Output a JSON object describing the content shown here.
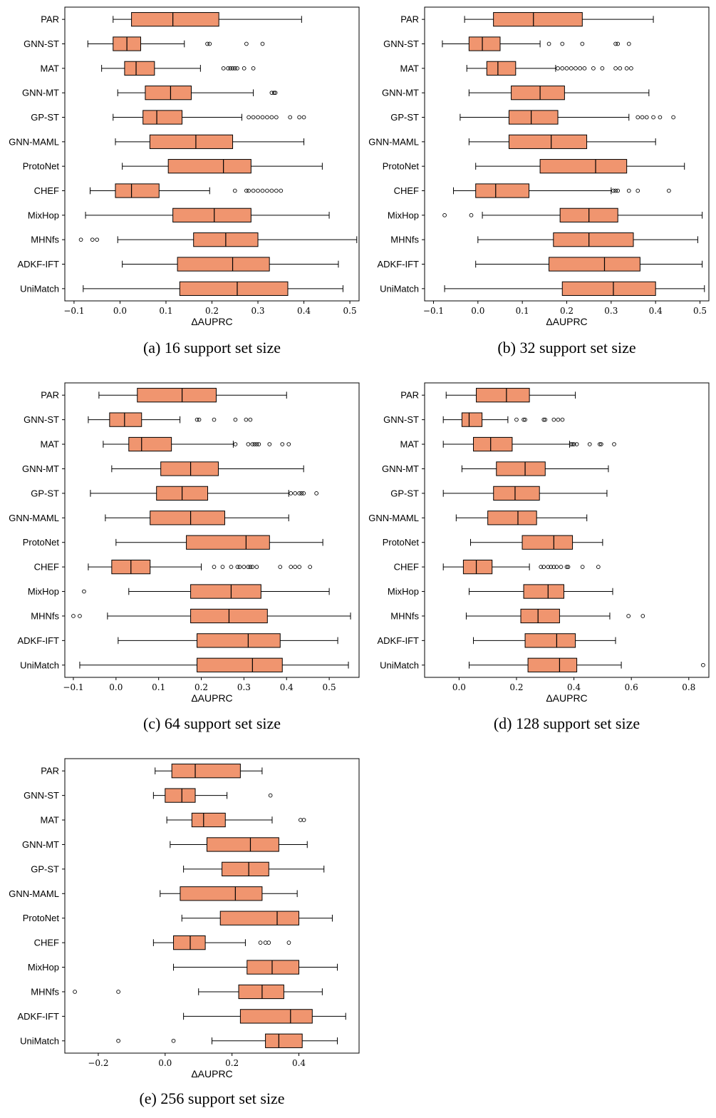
{
  "figure": {
    "box_color": "#f0956f",
    "edge_color": "#000000"
  },
  "chart_data": [
    {
      "type": "boxplot",
      "caption": "(a) 16 support set size",
      "xlabel": "ΔAUPRC",
      "xlim": [
        -0.12,
        0.52
      ],
      "xticks": [
        -0.1,
        0.0,
        0.1,
        0.2,
        0.3,
        0.4,
        0.5
      ],
      "xtick_labels": [
        "−0.1",
        "0.0",
        "0.1",
        "0.2",
        "0.3",
        "0.4",
        "0.5"
      ],
      "categories": [
        "PAR",
        "GNN-ST",
        "MAT",
        "GNN-MT",
        "GP-ST",
        "GNN-MAML",
        "ProtoNet",
        "CHEF",
        "MixHop",
        "MHNfs",
        "ADKF-IFT",
        "UniMatch"
      ],
      "boxes": [
        {
          "whislo": -0.015,
          "q1": 0.025,
          "med": 0.115,
          "q3": 0.215,
          "whishi": 0.395,
          "fliers": []
        },
        {
          "whislo": -0.07,
          "q1": -0.015,
          "med": 0.015,
          "q3": 0.045,
          "whishi": 0.14,
          "fliers": [
            0.19,
            0.195,
            0.275,
            0.31
          ]
        },
        {
          "whislo": -0.04,
          "q1": 0.01,
          "med": 0.035,
          "q3": 0.075,
          "whishi": 0.175,
          "fliers": [
            0.225,
            0.235,
            0.24,
            0.245,
            0.25,
            0.255,
            0.27,
            0.29
          ]
        },
        {
          "whislo": -0.005,
          "q1": 0.055,
          "med": 0.11,
          "q3": 0.155,
          "whishi": 0.29,
          "fliers": [
            0.33,
            0.335,
            0.338
          ]
        },
        {
          "whislo": -0.015,
          "q1": 0.05,
          "med": 0.08,
          "q3": 0.135,
          "whishi": 0.265,
          "fliers": [
            0.28,
            0.29,
            0.3,
            0.31,
            0.32,
            0.33,
            0.34,
            0.37,
            0.39,
            0.4
          ]
        },
        {
          "whislo": -0.01,
          "q1": 0.065,
          "med": 0.165,
          "q3": 0.245,
          "whishi": 0.4,
          "fliers": []
        },
        {
          "whislo": 0.005,
          "q1": 0.105,
          "med": 0.225,
          "q3": 0.285,
          "whishi": 0.44,
          "fliers": []
        },
        {
          "whislo": -0.065,
          "q1": -0.01,
          "med": 0.025,
          "q3": 0.085,
          "whishi": 0.195,
          "fliers": [
            0.25,
            0.275,
            0.28,
            0.29,
            0.3,
            0.31,
            0.32,
            0.33,
            0.34,
            0.35
          ]
        },
        {
          "whislo": -0.075,
          "q1": 0.115,
          "med": 0.205,
          "q3": 0.285,
          "whishi": 0.455,
          "fliers": []
        },
        {
          "whislo": -0.005,
          "q1": 0.16,
          "med": 0.23,
          "q3": 0.3,
          "whishi": 0.515,
          "fliers": [
            -0.085,
            -0.06,
            -0.05
          ]
        },
        {
          "whislo": 0.005,
          "q1": 0.125,
          "med": 0.245,
          "q3": 0.325,
          "whishi": 0.475,
          "fliers": []
        },
        {
          "whislo": -0.08,
          "q1": 0.13,
          "med": 0.255,
          "q3": 0.365,
          "whishi": 0.485,
          "fliers": []
        }
      ]
    },
    {
      "type": "boxplot",
      "caption": "(b) 32 support set size",
      "xlabel": "ΔAUPRC",
      "xlim": [
        -0.12,
        0.52
      ],
      "xticks": [
        -0.1,
        0.0,
        0.1,
        0.2,
        0.3,
        0.4,
        0.5
      ],
      "xtick_labels": [
        "−0.1",
        "0.0",
        "0.1",
        "0.2",
        "0.3",
        "0.4",
        "0.5"
      ],
      "categories": [
        "PAR",
        "GNN-ST",
        "MAT",
        "GNN-MT",
        "GP-ST",
        "GNN-MAML",
        "ProtoNet",
        "CHEF",
        "MixHop",
        "MHNfs",
        "ADKF-IFT",
        "UniMatch"
      ],
      "boxes": [
        {
          "whislo": -0.03,
          "q1": 0.035,
          "med": 0.125,
          "q3": 0.235,
          "whishi": 0.395,
          "fliers": []
        },
        {
          "whislo": -0.08,
          "q1": -0.02,
          "med": 0.01,
          "q3": 0.05,
          "whishi": 0.14,
          "fliers": [
            0.16,
            0.19,
            0.235,
            0.31,
            0.315,
            0.34
          ]
        },
        {
          "whislo": -0.025,
          "q1": 0.02,
          "med": 0.045,
          "q3": 0.085,
          "whishi": 0.175,
          "fliers": [
            0.18,
            0.19,
            0.2,
            0.21,
            0.22,
            0.23,
            0.24,
            0.26,
            0.28,
            0.31,
            0.32,
            0.335,
            0.345
          ]
        },
        {
          "whislo": -0.02,
          "q1": 0.075,
          "med": 0.14,
          "q3": 0.195,
          "whishi": 0.385,
          "fliers": []
        },
        {
          "whislo": -0.04,
          "q1": 0.07,
          "med": 0.12,
          "q3": 0.18,
          "whishi": 0.34,
          "fliers": [
            0.36,
            0.37,
            0.38,
            0.395,
            0.41,
            0.44
          ]
        },
        {
          "whislo": -0.02,
          "q1": 0.07,
          "med": 0.165,
          "q3": 0.245,
          "whishi": 0.4,
          "fliers": []
        },
        {
          "whislo": -0.005,
          "q1": 0.14,
          "med": 0.265,
          "q3": 0.335,
          "whishi": 0.465,
          "fliers": []
        },
        {
          "whislo": -0.055,
          "q1": -0.005,
          "med": 0.04,
          "q3": 0.115,
          "whishi": 0.3,
          "fliers": [
            0.305,
            0.31,
            0.315,
            0.34,
            0.36,
            0.43
          ]
        },
        {
          "whislo": 0.01,
          "q1": 0.185,
          "med": 0.25,
          "q3": 0.315,
          "whishi": 0.505,
          "fliers": [
            -0.075,
            -0.015
          ]
        },
        {
          "whislo": 0.0,
          "q1": 0.17,
          "med": 0.25,
          "q3": 0.35,
          "whishi": 0.495,
          "fliers": []
        },
        {
          "whislo": -0.005,
          "q1": 0.16,
          "med": 0.285,
          "q3": 0.365,
          "whishi": 0.505,
          "fliers": []
        },
        {
          "whislo": -0.075,
          "q1": 0.19,
          "med": 0.305,
          "q3": 0.4,
          "whishi": 0.51,
          "fliers": []
        }
      ]
    },
    {
      "type": "boxplot",
      "caption": "(c) 64 support set size",
      "xlabel": "ΔAUPRC",
      "xlim": [
        -0.12,
        0.57
      ],
      "xticks": [
        -0.1,
        0.0,
        0.1,
        0.2,
        0.3,
        0.4,
        0.5
      ],
      "xtick_labels": [
        "−0.1",
        "0.0",
        "0.1",
        "0.2",
        "0.3",
        "0.4",
        "0.5"
      ],
      "categories": [
        "PAR",
        "GNN-ST",
        "MAT",
        "GNN-MT",
        "GP-ST",
        "GNN-MAML",
        "ProtoNet",
        "CHEF",
        "MixHop",
        "MHNfs",
        "ADKF-IFT",
        "UniMatch"
      ],
      "boxes": [
        {
          "whislo": -0.04,
          "q1": 0.05,
          "med": 0.155,
          "q3": 0.235,
          "whishi": 0.4,
          "fliers": []
        },
        {
          "whislo": -0.065,
          "q1": -0.015,
          "med": 0.02,
          "q3": 0.06,
          "whishi": 0.15,
          "fliers": [
            0.19,
            0.195,
            0.23,
            0.28,
            0.305,
            0.315
          ]
        },
        {
          "whislo": -0.03,
          "q1": 0.03,
          "med": 0.06,
          "q3": 0.13,
          "whishi": 0.275,
          "fliers": [
            0.28,
            0.31,
            0.32,
            0.325,
            0.33,
            0.335,
            0.36,
            0.39,
            0.405
          ]
        },
        {
          "whislo": -0.01,
          "q1": 0.105,
          "med": 0.175,
          "q3": 0.24,
          "whishi": 0.44,
          "fliers": []
        },
        {
          "whislo": -0.06,
          "q1": 0.095,
          "med": 0.155,
          "q3": 0.215,
          "whishi": 0.405,
          "fliers": [
            0.41,
            0.42,
            0.43,
            0.435,
            0.44,
            0.47
          ]
        },
        {
          "whislo": -0.025,
          "q1": 0.08,
          "med": 0.175,
          "q3": 0.255,
          "whishi": 0.405,
          "fliers": []
        },
        {
          "whislo": 0.0,
          "q1": 0.165,
          "med": 0.305,
          "q3": 0.36,
          "whishi": 0.485,
          "fliers": []
        },
        {
          "whislo": -0.065,
          "q1": -0.01,
          "med": 0.035,
          "q3": 0.08,
          "whishi": 0.2,
          "fliers": [
            0.23,
            0.25,
            0.27,
            0.285,
            0.29,
            0.3,
            0.31,
            0.315,
            0.32,
            0.33,
            0.385,
            0.41,
            0.42,
            0.43,
            0.455
          ]
        },
        {
          "whislo": 0.03,
          "q1": 0.175,
          "med": 0.27,
          "q3": 0.34,
          "whishi": 0.5,
          "fliers": [
            -0.075
          ]
        },
        {
          "whislo": -0.02,
          "q1": 0.175,
          "med": 0.265,
          "q3": 0.355,
          "whishi": 0.55,
          "fliers": [
            -0.1,
            -0.085
          ]
        },
        {
          "whislo": 0.005,
          "q1": 0.19,
          "med": 0.31,
          "q3": 0.385,
          "whishi": 0.52,
          "fliers": []
        },
        {
          "whislo": -0.085,
          "q1": 0.19,
          "med": 0.32,
          "q3": 0.39,
          "whishi": 0.545,
          "fliers": []
        }
      ]
    },
    {
      "type": "boxplot",
      "caption": "(d) 128 support set size",
      "xlabel": "ΔAUPRC",
      "xlim": [
        -0.12,
        0.87
      ],
      "xticks": [
        0.0,
        0.2,
        0.4,
        0.6,
        0.8
      ],
      "xtick_labels": [
        "0.0",
        "0.2",
        "0.4",
        "0.6",
        "0.8"
      ],
      "categories": [
        "PAR",
        "GNN-ST",
        "MAT",
        "GNN-MT",
        "GP-ST",
        "GNN-MAML",
        "ProtoNet",
        "CHEF",
        "MixHop",
        "MHNfs",
        "ADKF-IFT",
        "UniMatch"
      ],
      "boxes": [
        {
          "whislo": -0.045,
          "q1": 0.06,
          "med": 0.165,
          "q3": 0.245,
          "whishi": 0.405,
          "fliers": []
        },
        {
          "whislo": -0.055,
          "q1": 0.01,
          "med": 0.035,
          "q3": 0.08,
          "whishi": 0.17,
          "fliers": [
            0.2,
            0.225,
            0.23,
            0.295,
            0.3,
            0.33,
            0.345,
            0.36
          ]
        },
        {
          "whislo": -0.055,
          "q1": 0.05,
          "med": 0.11,
          "q3": 0.185,
          "whishi": 0.385,
          "fliers": [
            0.39,
            0.395,
            0.4,
            0.41,
            0.455,
            0.49,
            0.495,
            0.54
          ]
        },
        {
          "whislo": 0.01,
          "q1": 0.13,
          "med": 0.23,
          "q3": 0.3,
          "whishi": 0.52,
          "fliers": []
        },
        {
          "whislo": -0.055,
          "q1": 0.12,
          "med": 0.195,
          "q3": 0.28,
          "whishi": 0.515,
          "fliers": []
        },
        {
          "whislo": -0.01,
          "q1": 0.1,
          "med": 0.205,
          "q3": 0.27,
          "whishi": 0.445,
          "fliers": []
        },
        {
          "whislo": 0.04,
          "q1": 0.22,
          "med": 0.33,
          "q3": 0.395,
          "whishi": 0.5,
          "fliers": []
        },
        {
          "whislo": -0.055,
          "q1": 0.015,
          "med": 0.06,
          "q3": 0.115,
          "whishi": 0.245,
          "fliers": [
            0.285,
            0.295,
            0.31,
            0.32,
            0.33,
            0.34,
            0.355,
            0.375,
            0.38,
            0.43,
            0.485
          ]
        },
        {
          "whislo": 0.035,
          "q1": 0.225,
          "med": 0.31,
          "q3": 0.365,
          "whishi": 0.535,
          "fliers": []
        },
        {
          "whislo": 0.025,
          "q1": 0.215,
          "med": 0.275,
          "q3": 0.35,
          "whishi": 0.525,
          "fliers": [
            0.59,
            0.64
          ]
        },
        {
          "whislo": 0.05,
          "q1": 0.23,
          "med": 0.34,
          "q3": 0.405,
          "whishi": 0.545,
          "fliers": []
        },
        {
          "whislo": 0.035,
          "q1": 0.24,
          "med": 0.35,
          "q3": 0.41,
          "whishi": 0.565,
          "fliers": [
            0.85
          ]
        }
      ]
    },
    {
      "type": "boxplot",
      "caption": "(e) 256 support set size",
      "xlabel": "ΔAUPRC",
      "xlim": [
        -0.3,
        0.58
      ],
      "xticks": [
        -0.2,
        0.0,
        0.2,
        0.4
      ],
      "xtick_labels": [
        "−0.2",
        "0.0",
        "0.2",
        "0.4"
      ],
      "categories": [
        "PAR",
        "GNN-ST",
        "MAT",
        "GNN-MT",
        "GP-ST",
        "GNN-MAML",
        "ProtoNet",
        "CHEF",
        "MixHop",
        "MHNfs",
        "ADKF-IFT",
        "UniMatch"
      ],
      "boxes": [
        {
          "whislo": -0.03,
          "q1": 0.02,
          "med": 0.09,
          "q3": 0.225,
          "whishi": 0.29,
          "fliers": []
        },
        {
          "whislo": -0.035,
          "q1": 0.0,
          "med": 0.05,
          "q3": 0.09,
          "whishi": 0.185,
          "fliers": [
            0.315
          ]
        },
        {
          "whislo": 0.005,
          "q1": 0.08,
          "med": 0.115,
          "q3": 0.18,
          "whishi": 0.32,
          "fliers": [
            0.405,
            0.415
          ]
        },
        {
          "whislo": 0.015,
          "q1": 0.125,
          "med": 0.255,
          "q3": 0.34,
          "whishi": 0.425,
          "fliers": []
        },
        {
          "whislo": 0.055,
          "q1": 0.17,
          "med": 0.25,
          "q3": 0.31,
          "whishi": 0.475,
          "fliers": []
        },
        {
          "whislo": -0.015,
          "q1": 0.045,
          "med": 0.21,
          "q3": 0.29,
          "whishi": 0.395,
          "fliers": []
        },
        {
          "whislo": 0.05,
          "q1": 0.165,
          "med": 0.335,
          "q3": 0.4,
          "whishi": 0.5,
          "fliers": []
        },
        {
          "whislo": -0.035,
          "q1": 0.025,
          "med": 0.075,
          "q3": 0.12,
          "whishi": 0.24,
          "fliers": [
            0.285,
            0.3,
            0.31,
            0.37
          ]
        },
        {
          "whislo": 0.025,
          "q1": 0.245,
          "med": 0.32,
          "q3": 0.4,
          "whishi": 0.515,
          "fliers": []
        },
        {
          "whislo": 0.1,
          "q1": 0.22,
          "med": 0.29,
          "q3": 0.355,
          "whishi": 0.47,
          "fliers": [
            -0.27,
            -0.14
          ]
        },
        {
          "whislo": 0.055,
          "q1": 0.225,
          "med": 0.375,
          "q3": 0.44,
          "whishi": 0.54,
          "fliers": []
        },
        {
          "whislo": 0.14,
          "q1": 0.3,
          "med": 0.34,
          "q3": 0.41,
          "whishi": 0.515,
          "fliers": [
            -0.14,
            0.025
          ]
        }
      ]
    }
  ]
}
